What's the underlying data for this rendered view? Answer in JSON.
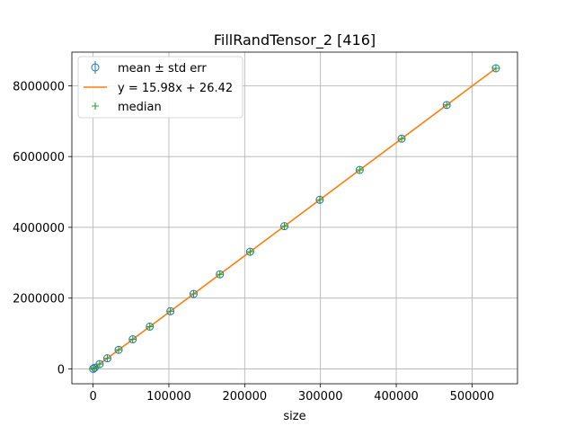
{
  "chart_data": {
    "type": "scatter",
    "title": "FillRandTensor_2 [416]",
    "xlabel": "size",
    "ylabel": "",
    "xlim": [
      -28000,
      560000
    ],
    "ylim": [
      -420000,
      8950000
    ],
    "xticks": [
      0,
      100000,
      200000,
      300000,
      400000,
      500000
    ],
    "xtick_labels": [
      "0",
      "100000",
      "200000",
      "300000",
      "400000",
      "500000"
    ],
    "yticks": [
      0,
      2000000,
      4000000,
      6000000,
      8000000
    ],
    "ytick_labels": [
      "0",
      "2000000",
      "4000000",
      "6000000",
      "8000000"
    ],
    "grid": true,
    "legend_position": "top-left",
    "fit": {
      "slope": 15.98,
      "intercept": 26.42
    },
    "series": [
      {
        "name": "mean ± std err",
        "marker": "circle-errorbar",
        "color": "#1f77b4",
        "x": [
          64,
          2050,
          8600,
          18800,
          33700,
          52300,
          74800,
          102000,
          132600,
          167300,
          207200,
          252400,
          299100,
          351800,
          407100,
          466600,
          531500
        ],
        "y": [
          1000,
          33000,
          137000,
          300000,
          539000,
          836000,
          1195000,
          1630000,
          2119000,
          2673000,
          3311000,
          4033000,
          4779000,
          5621000,
          6505000,
          7456000,
          8493000
        ]
      },
      {
        "name": "y = 15.98x + 26.42",
        "marker": "line",
        "color": "#ff7f0e",
        "x": [
          64,
          531500
        ],
        "y": [
          1049,
          8493396
        ]
      },
      {
        "name": "median",
        "marker": "plus",
        "color": "#2ca02c",
        "x": [
          64,
          2050,
          8600,
          18800,
          33700,
          52300,
          74800,
          102000,
          132600,
          167300,
          207200,
          252400,
          299100,
          351800,
          407100,
          466600,
          531500
        ],
        "y": [
          1000,
          33000,
          137000,
          300000,
          539000,
          836000,
          1195000,
          1630000,
          2119000,
          2673000,
          3311000,
          4033000,
          4779000,
          5621000,
          6505000,
          7456000,
          8493000
        ]
      }
    ]
  },
  "colors": {
    "mean": "#1f77b4",
    "fit": "#ff7f0e",
    "median": "#2ca02c",
    "grid": "#b0b0b0"
  }
}
